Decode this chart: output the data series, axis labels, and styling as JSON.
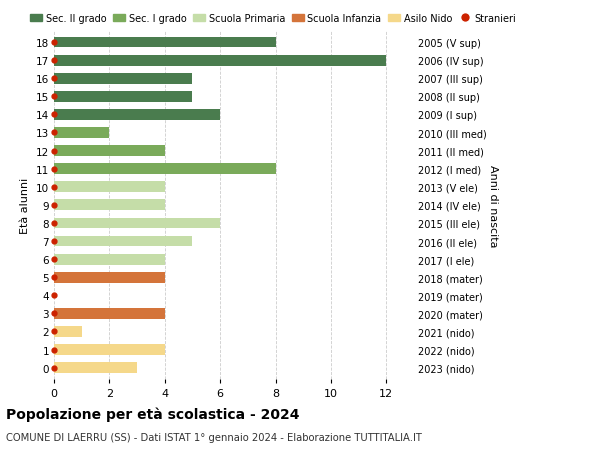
{
  "ages": [
    18,
    17,
    16,
    15,
    14,
    13,
    12,
    11,
    10,
    9,
    8,
    7,
    6,
    5,
    4,
    3,
    2,
    1,
    0
  ],
  "right_labels": [
    "2005 (V sup)",
    "2006 (IV sup)",
    "2007 (III sup)",
    "2008 (II sup)",
    "2009 (I sup)",
    "2010 (III med)",
    "2011 (II med)",
    "2012 (I med)",
    "2013 (V ele)",
    "2014 (IV ele)",
    "2015 (III ele)",
    "2016 (II ele)",
    "2017 (I ele)",
    "2018 (mater)",
    "2019 (mater)",
    "2020 (mater)",
    "2021 (nido)",
    "2022 (nido)",
    "2023 (nido)"
  ],
  "bar_values": [
    8,
    12,
    5,
    5,
    6,
    2,
    4,
    8,
    4,
    4,
    6,
    5,
    4,
    4,
    0,
    4,
    1,
    4,
    3
  ],
  "bar_colors": [
    "#4a7c4e",
    "#4a7c4e",
    "#4a7c4e",
    "#4a7c4e",
    "#4a7c4e",
    "#7aaa5a",
    "#7aaa5a",
    "#7aaa5a",
    "#c5dda8",
    "#c5dda8",
    "#c5dda8",
    "#c5dda8",
    "#c5dda8",
    "#d4743a",
    "#d4743a",
    "#d4743a",
    "#f5d88a",
    "#f5d88a",
    "#f5d88a"
  ],
  "legend_labels": [
    "Sec. II grado",
    "Sec. I grado",
    "Scuola Primaria",
    "Scuola Infanzia",
    "Asilo Nido",
    "Stranieri"
  ],
  "legend_colors": [
    "#4a7c4e",
    "#7aaa5a",
    "#c5dda8",
    "#d4743a",
    "#f5d88a",
    "#cc2200"
  ],
  "dot_color": "#cc2200",
  "title_bold": "Popolazione per età scolastica - 2024",
  "subtitle": "COMUNE DI LAERRU (SS) - Dati ISTAT 1° gennaio 2024 - Elaborazione TUTTITALIA.IT",
  "ylabel": "Età alunni",
  "right_ylabel": "Anni di nascita",
  "xlim": [
    0,
    13
  ],
  "xticks": [
    0,
    2,
    4,
    6,
    8,
    10,
    12
  ],
  "background_color": "#ffffff",
  "grid_color": "#cccccc"
}
